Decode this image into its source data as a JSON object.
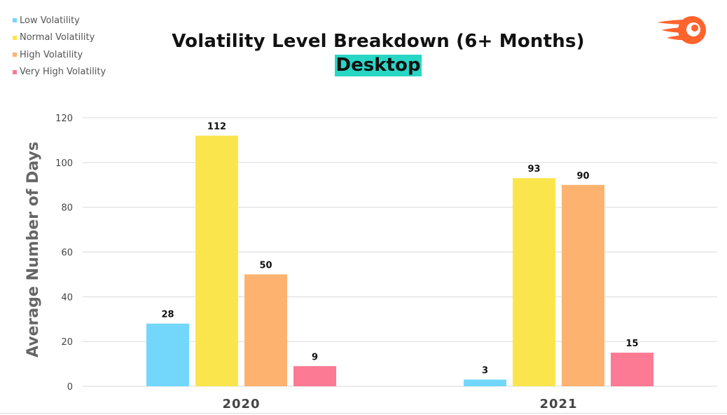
{
  "chart_data": {
    "type": "bar",
    "title": "Volatility Level Breakdown (6+ Months)",
    "subtitle": "Desktop",
    "xlabel": "",
    "ylabel": "Average Number of Days",
    "ylim": [
      0,
      120
    ],
    "yticks": [
      "0",
      "20",
      "40",
      "60",
      "80",
      "100",
      "120"
    ],
    "grid": true,
    "legend_position": "top-left",
    "categories": [
      "2020",
      "2021"
    ],
    "series": [
      {
        "name": "Low Volatility",
        "color": "#72d7fb",
        "values": [
          28,
          3
        ],
        "labels": [
          "28",
          "3"
        ]
      },
      {
        "name": "Normal Volatility",
        "color": "#fbe54c",
        "values": [
          112,
          93
        ],
        "labels": [
          "112",
          "93"
        ]
      },
      {
        "name": "High Volatility",
        "color": "#fdb36f",
        "values": [
          50,
          90
        ],
        "labels": [
          "50",
          "90"
        ]
      },
      {
        "name": "Very High Volatility",
        "color": "#fc7a93",
        "values": [
          9,
          15
        ],
        "labels": [
          "9",
          "15"
        ]
      }
    ]
  },
  "logo": {
    "icon": "semrush-logo-icon",
    "color": "#ff642d"
  }
}
